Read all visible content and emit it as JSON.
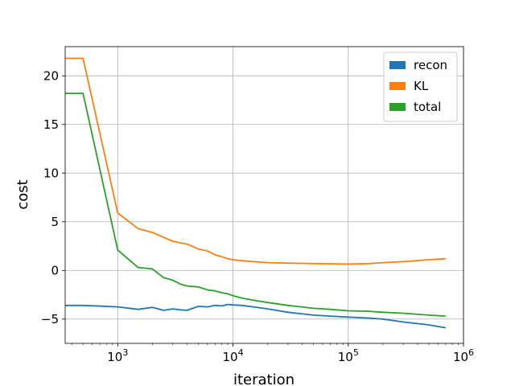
{
  "chart_data": {
    "type": "line",
    "xlabel": "iteration",
    "ylabel": "cost",
    "xscale": "log",
    "xlim": [
      350,
      1000000
    ],
    "ylim": [
      -7.5,
      23
    ],
    "grid": true,
    "legend_position": "top-right",
    "x_ticks": [
      {
        "value": 1000,
        "base": "10",
        "exp": "3"
      },
      {
        "value": 10000,
        "base": "10",
        "exp": "4"
      },
      {
        "value": 100000,
        "base": "10",
        "exp": "5"
      },
      {
        "value": 1000000,
        "base": "10",
        "exp": "6"
      }
    ],
    "y_ticks": [
      {
        "value": -5,
        "label": "−5"
      },
      {
        "value": 0,
        "label": "0"
      },
      {
        "value": 5,
        "label": "5"
      },
      {
        "value": 10,
        "label": "10"
      },
      {
        "value": 15,
        "label": "15"
      },
      {
        "value": 20,
        "label": "20"
      }
    ],
    "series": [
      {
        "name": "recon",
        "color": "#1f77b4",
        "x": [
          350,
          500,
          1000,
          1500,
          2000,
          2500,
          3000,
          3500,
          4000,
          5000,
          6000,
          7000,
          8000,
          9000,
          10000,
          12000,
          15000,
          20000,
          30000,
          50000,
          70000,
          100000,
          150000,
          200000,
          300000,
          500000,
          700000
        ],
        "y": [
          -3.6,
          -3.6,
          -3.75,
          -4.0,
          -3.8,
          -4.1,
          -3.95,
          -4.05,
          -4.1,
          -3.7,
          -3.75,
          -3.6,
          -3.65,
          -3.5,
          -3.55,
          -3.6,
          -3.75,
          -3.95,
          -4.3,
          -4.6,
          -4.7,
          -4.8,
          -4.9,
          -5.0,
          -5.3,
          -5.6,
          -5.9
        ]
      },
      {
        "name": "KL",
        "color": "#ff7f0e",
        "x": [
          350,
          500,
          1000,
          1500,
          2000,
          2500,
          3000,
          4000,
          5000,
          6000,
          7000,
          8000,
          9000,
          10000,
          12000,
          15000,
          20000,
          30000,
          50000,
          100000,
          150000,
          200000,
          300000,
          500000,
          700000
        ],
        "y": [
          21.8,
          21.8,
          5.9,
          4.3,
          3.9,
          3.4,
          3.0,
          2.7,
          2.2,
          2.0,
          1.6,
          1.4,
          1.2,
          1.1,
          1.0,
          0.9,
          0.8,
          0.75,
          0.7,
          0.65,
          0.7,
          0.8,
          0.9,
          1.1,
          1.2
        ]
      },
      {
        "name": "total",
        "color": "#2ca02c",
        "x": [
          350,
          500,
          1000,
          1500,
          2000,
          2500,
          3000,
          3500,
          4000,
          5000,
          6000,
          7000,
          8000,
          9000,
          10000,
          12000,
          15000,
          20000,
          30000,
          50000,
          70000,
          100000,
          150000,
          200000,
          300000,
          500000,
          700000
        ],
        "y": [
          18.2,
          18.2,
          2.1,
          0.3,
          0.15,
          -0.75,
          -1.0,
          -1.4,
          -1.6,
          -1.7,
          -2.0,
          -2.1,
          -2.3,
          -2.4,
          -2.6,
          -2.85,
          -3.05,
          -3.3,
          -3.6,
          -3.9,
          -4.0,
          -4.15,
          -4.2,
          -4.3,
          -4.4,
          -4.6,
          -4.7
        ]
      }
    ]
  }
}
